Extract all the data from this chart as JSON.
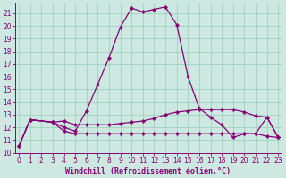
{
  "xlabel": "Windchill (Refroidissement éolien,°C)",
  "bg_color": "#cce8e0",
  "grid_color": "#99ccbb",
  "line_color": "#880077",
  "xlim_min": -0.3,
  "xlim_max": 23.2,
  "ylim_min": 10,
  "ylim_max": 21.8,
  "xticks": [
    0,
    1,
    2,
    3,
    4,
    5,
    6,
    7,
    8,
    9,
    10,
    11,
    12,
    13,
    14,
    15,
    16,
    17,
    18,
    19,
    20,
    21,
    22,
    23
  ],
  "yticks": [
    10,
    11,
    12,
    13,
    14,
    15,
    16,
    17,
    18,
    19,
    20,
    21
  ],
  "series1_x": [
    0,
    1,
    3,
    4,
    5,
    6,
    7,
    8,
    9,
    10,
    11,
    12,
    13,
    14,
    15,
    16,
    17,
    18,
    19,
    20,
    21,
    22,
    23
  ],
  "series1_y": [
    10.5,
    12.6,
    12.4,
    12.0,
    11.7,
    13.3,
    15.4,
    17.5,
    19.9,
    21.4,
    21.1,
    21.3,
    21.5,
    20.1,
    16.0,
    13.5,
    12.8,
    12.2,
    11.2,
    11.5,
    11.5,
    12.8,
    11.2
  ],
  "series2_x": [
    0,
    1,
    3,
    4,
    5,
    6,
    7,
    8,
    9,
    10,
    11,
    12,
    13,
    14,
    15,
    16,
    17,
    18,
    19,
    20,
    21,
    22,
    23
  ],
  "series2_y": [
    10.5,
    12.6,
    12.4,
    12.5,
    12.2,
    12.2,
    12.2,
    12.2,
    12.3,
    12.4,
    12.5,
    12.7,
    13.0,
    13.2,
    13.3,
    13.4,
    13.4,
    13.4,
    13.4,
    13.2,
    12.9,
    12.8,
    11.2
  ],
  "series3_x": [
    0,
    1,
    3,
    4,
    5,
    6,
    7,
    8,
    9,
    10,
    11,
    12,
    13,
    14,
    15,
    16,
    17,
    18,
    19,
    20,
    21,
    22,
    23
  ],
  "series3_y": [
    10.5,
    12.6,
    12.4,
    11.7,
    11.5,
    11.5,
    11.5,
    11.5,
    11.5,
    11.5,
    11.5,
    11.5,
    11.5,
    11.5,
    11.5,
    11.5,
    11.5,
    11.5,
    11.5,
    11.5,
    11.5,
    11.3,
    11.2
  ],
  "tick_fontsize": 5.5,
  "label_fontsize": 6.0
}
